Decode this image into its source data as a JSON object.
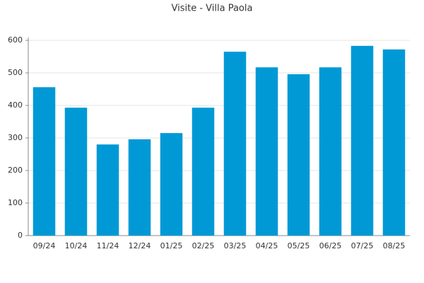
{
  "chart_data": {
    "type": "bar",
    "title": "Visite - Villa Paola",
    "categories": [
      "09/24",
      "10/24",
      "11/24",
      "12/24",
      "01/25",
      "02/25",
      "03/25",
      "04/25",
      "05/25",
      "06/25",
      "07/25",
      "08/25"
    ],
    "values": [
      456,
      393,
      280,
      296,
      315,
      393,
      565,
      517,
      496,
      517,
      583,
      572
    ],
    "color": "#0099d6",
    "ylim": [
      0,
      600
    ],
    "yticks": [
      0,
      100,
      200,
      300,
      400,
      500,
      600
    ],
    "grid": true
  }
}
